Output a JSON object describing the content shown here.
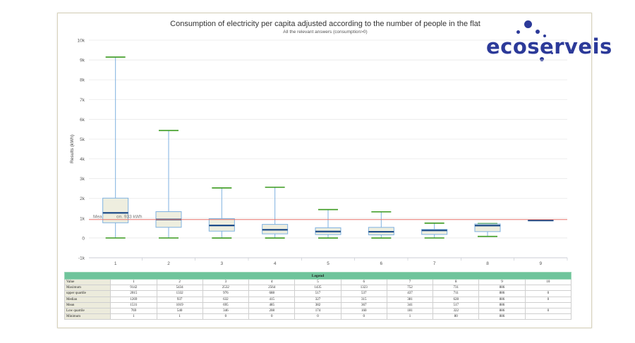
{
  "chart_data": {
    "type": "boxplot",
    "title": "Consumption of electricity per capita adjusted according to the number of people in the flat",
    "subtitle": "All the relevant answers (consumption>0)",
    "ylabel": "Results (kWh)",
    "xlabel": "",
    "ylim": [
      -1000,
      10000
    ],
    "yticks": [
      -1000,
      0,
      1000,
      2000,
      3000,
      4000,
      5000,
      6000,
      7000,
      8000,
      9000,
      10000
    ],
    "ytick_labels": [
      "-1k",
      "0",
      "1k",
      "2k",
      "3k",
      "4k",
      "5k",
      "6k",
      "7k",
      "8k",
      "9k",
      "10k"
    ],
    "categories": [
      "1",
      "2",
      "3",
      "4",
      "5",
      "6",
      "7",
      "8",
      "9"
    ],
    "boxes": [
      {
        "category": "1",
        "min": 1,
        "q1": 769,
        "median": 1269,
        "q3": 2015,
        "max": 9142
      },
      {
        "category": "2",
        "min": 1,
        "q1": 540,
        "median": 937,
        "q3": 1332,
        "max": 5434
      },
      {
        "category": "3",
        "min": 0,
        "q1": 346,
        "median": 632,
        "q3": 976,
        "max": 2532
      },
      {
        "category": "4",
        "min": 0,
        "q1": 208,
        "median": 415,
        "q3": 688,
        "max": 2564
      },
      {
        "category": "5",
        "min": 0,
        "q1": 174,
        "median": 327,
        "q3": 517,
        "max": 1435
      },
      {
        "category": "6",
        "min": 0,
        "q1": 160,
        "median": 315,
        "q3": 537,
        "max": 1323
      },
      {
        "category": "7",
        "min": 1,
        "q1": 181,
        "median": 381,
        "q3": 437,
        "max": 752
      },
      {
        "category": "8",
        "min": 80,
        "q1": 322,
        "median": 628,
        "q3": 711,
        "max": 731
      },
      {
        "category": "9",
        "min": 886,
        "q1": 886,
        "median": 886,
        "q3": 886,
        "max": 886
      }
    ],
    "reference_line": {
      "value": 933,
      "label": "Mean consumption: 933 kWh",
      "visible_label": "Mea",
      "visible_label_tail": "on. 933 kWh",
      "color": "#e8736b"
    },
    "colors": {
      "whisker": "#7fb2e0",
      "cap": "#3a9a1e",
      "box_fill": "#eeeedf",
      "box_stroke": "#7fb2e0",
      "median": "#1f4e8a",
      "grid": "#e6e6e6"
    }
  },
  "logo": {
    "text": "ecoserveis",
    "color": "#2c3a99"
  },
  "legend": {
    "title": "Legend",
    "columns": [
      "Value",
      "1",
      "2",
      "3",
      "4",
      "5",
      "6",
      "7",
      "8",
      "9",
      "10"
    ],
    "rows": [
      {
        "label": "Maximum",
        "values": [
          "9142",
          "5434",
          "2532",
          "2564",
          "1435",
          "1323",
          "752",
          "731",
          "886",
          ""
        ]
      },
      {
        "label": "upper quartile",
        "values": [
          "2015",
          "1332",
          "976",
          "688",
          "517",
          "537",
          "437",
          "711",
          "886",
          "0"
        ]
      },
      {
        "label": "Median",
        "values": [
          "1269",
          "937",
          "632",
          "415",
          "327",
          "315",
          "381",
          "628",
          "886",
          "0"
        ]
      },
      {
        "label": "Mean",
        "values": [
          "1531",
          "1019",
          "695",
          "485",
          "382",
          "367",
          "341",
          "517",
          "886",
          ""
        ]
      },
      {
        "label": "Low quartile",
        "values": [
          "769",
          "540",
          "346",
          "208",
          "174",
          "160",
          "181",
          "322",
          "886",
          "0"
        ]
      },
      {
        "label": "Minimum",
        "values": [
          "1",
          "1",
          "0",
          "0",
          "0",
          "0",
          "1",
          "80",
          "886",
          ""
        ]
      }
    ]
  }
}
